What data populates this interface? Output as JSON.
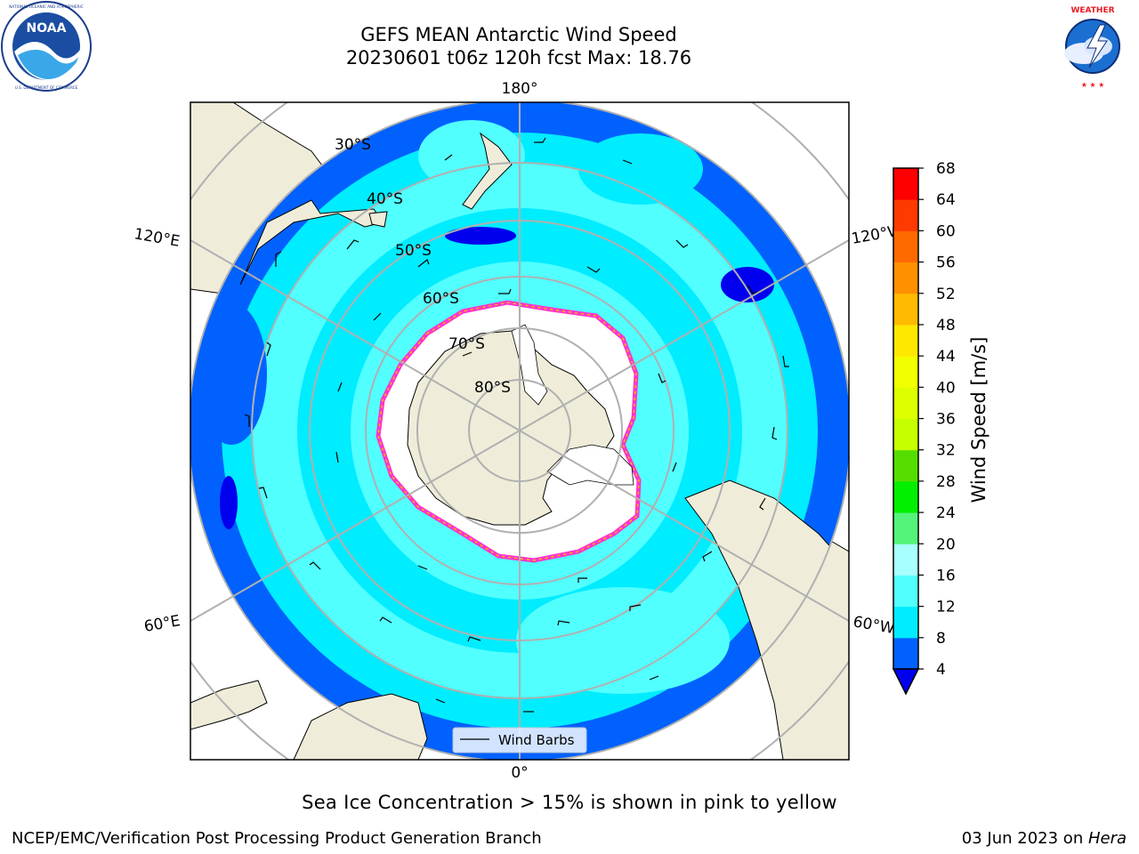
{
  "header": {
    "title": "GEFS MEAN Antarctic Wind Speed",
    "subtitle": "20230601 t06z 120h fcst   Max: 18.76"
  },
  "logos": {
    "left": {
      "icon": "noaa-logo",
      "text": "NOAA",
      "ring_text": "NATIONAL OCEANIC AND ATMOSPHERIC ADMINISTRATION · U.S. DEPARTMENT OF COMMERCE"
    },
    "right": {
      "icon": "nws-logo",
      "ring_text": "NATIONAL WEATHER SERVICE"
    }
  },
  "map": {
    "projection": "south-polar-stereographic",
    "longitude_labels": {
      "top": "180°",
      "bottom": "0°",
      "upper_left": "120°E",
      "upper_right": "120°W",
      "lower_left": "60°E",
      "lower_right": "60°W"
    },
    "latitude_labels": [
      "30°S",
      "40°S",
      "50°S",
      "60°S",
      "70°S",
      "80°S"
    ],
    "legend": {
      "label": "Wind Barbs"
    }
  },
  "colorbar": {
    "label": "Wind Speed [m/s]",
    "ticks": [
      "4",
      "8",
      "12",
      "16",
      "20",
      "24",
      "28",
      "32",
      "36",
      "40",
      "44",
      "48",
      "52",
      "56",
      "60",
      "64",
      "68"
    ],
    "extend": "min",
    "under_color": "#0000ee",
    "colors": [
      "#0061ff",
      "#00ecff",
      "#52ffff",
      "#a8ffff",
      "#54f47a",
      "#00f000",
      "#55dd00",
      "#c6ff00",
      "#ddff00",
      "#f2ff00",
      "#ffe800",
      "#ffbb00",
      "#ff9000",
      "#ff6a00",
      "#ff3a00",
      "#ff0000"
    ]
  },
  "caption": "Sea Ice Concentration > 15% is shown in pink to yellow",
  "footer": {
    "left": "NCEP/EMC/Verification Post Processing Product Generation Branch",
    "right_date": "03 Jun 2023 on ",
    "right_host": "Hera"
  },
  "colors": {
    "land": "#efedd9",
    "ocean_low": "#0061ff",
    "ocean_mid": "#00ecff",
    "ocean_high": "#52ffff",
    "sea_ice_edge": "#ff33cc",
    "grid": "#b0b0b0"
  }
}
